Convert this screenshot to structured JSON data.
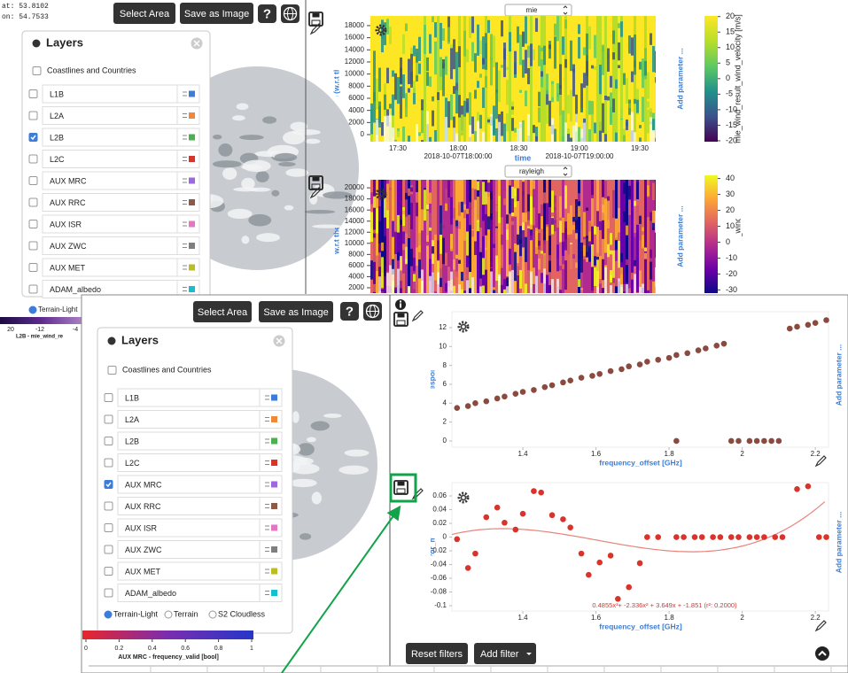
{
  "top_window": {
    "coords": [
      "at: 53.8102",
      "on: 54.7533"
    ],
    "buttons": {
      "select_area": "Select Area",
      "save_image": "Save as Image",
      "help": "?"
    },
    "layers_panel": {
      "title": "Layers",
      "coastlines": "Coastlines and Countries",
      "layers": [
        {
          "name": "L1B",
          "color": "#3b7dd8",
          "checked": false
        },
        {
          "name": "L2A",
          "color": "#f0883a",
          "checked": false
        },
        {
          "name": "L2B",
          "color": "#4caf50",
          "checked": true
        },
        {
          "name": "L2C",
          "color": "#d9342b",
          "checked": false
        },
        {
          "name": "AUX MRC",
          "color": "#9c6ade",
          "checked": false
        },
        {
          "name": "AUX RRC",
          "color": "#8d5a4a",
          "checked": false
        },
        {
          "name": "AUX ISR",
          "color": "#e377c2",
          "checked": false
        },
        {
          "name": "AUX ZWC",
          "color": "#7f7f7f",
          "checked": false
        },
        {
          "name": "AUX MET",
          "color": "#bcbd22",
          "checked": false
        },
        {
          "name": "ADAM_albedo",
          "color": "#17becf",
          "checked": false
        }
      ]
    },
    "base_layer": "Terrain-Light",
    "legend": {
      "ticks": [
        20,
        -12,
        -4
      ],
      "label": "L2B - mie_wind_re"
    },
    "plots": [
      {
        "product": "mie",
        "y_label": "mie_altitude [m (w.r.t the WGS84 ellipsoi",
        "ylim": [
          -1170,
          19600
        ],
        "yticks": [
          0,
          2000,
          4000,
          6000,
          8000,
          10000,
          12000,
          14000,
          16000,
          18000
        ],
        "xticks": [
          "17:30",
          "18:00",
          "18:30",
          "19:00",
          "19:30"
        ],
        "x_dates": [
          "2018-10-07T18:00:00",
          "2018-10-07T19:00:00"
        ],
        "x_label": "time",
        "add_parameter": "Add parameter ...",
        "colorbar": {
          "label": "mie_wind_result_wind_velocity [m/s]",
          "clim": [
            -20.3,
            20.2
          ],
          "ticks": [
            20,
            15,
            10,
            5,
            0,
            -5,
            -10,
            -15,
            -20
          ],
          "colormap": "viridis"
        }
      },
      {
        "product": "rayleigh",
        "y_label": "altitude [m (w.r.t the WGS84 ellips",
        "ylim": [
          1035,
          21450
        ],
        "yticks": [
          2000,
          4000,
          6000,
          8000,
          10000,
          12000,
          14000,
          16000,
          18000,
          20000
        ],
        "add_parameter": "Add parameter ...",
        "colorbar": {
          "label": "eigh_wind_result_wind_velocity [m/s]",
          "clim": [
            -32,
            42
          ],
          "ticks": [
            40,
            30,
            20,
            10,
            0,
            -10,
            -20,
            -30
          ],
          "colormap": "plasma"
        }
      }
    ]
  },
  "bottom_window": {
    "buttons": {
      "select_area": "Select Area",
      "save_image": "Save as Image",
      "help": "?"
    },
    "layers_panel": {
      "title": "Layers",
      "coastlines": "Coastlines and Countries",
      "layers": [
        {
          "name": "L1B",
          "color": "#3b7dd8",
          "checked": false
        },
        {
          "name": "L2A",
          "color": "#f0883a",
          "checked": false
        },
        {
          "name": "L2B",
          "color": "#4caf50",
          "checked": false
        },
        {
          "name": "L2C",
          "color": "#d9342b",
          "checked": false
        },
        {
          "name": "AUX MRC",
          "color": "#9c6ade",
          "checked": true
        },
        {
          "name": "AUX RRC",
          "color": "#8d5a4a",
          "checked": false
        },
        {
          "name": "AUX ISR",
          "color": "#e377c2",
          "checked": false
        },
        {
          "name": "AUX ZWC",
          "color": "#7f7f7f",
          "checked": false
        },
        {
          "name": "AUX MET",
          "color": "#bcbd22",
          "checked": false
        },
        {
          "name": "ADAM_albedo",
          "color": "#17becf",
          "checked": false
        }
      ]
    },
    "base_layers": [
      "Terrain-Light",
      "Terrain",
      "S2 Cloudless"
    ],
    "selected_base": 0,
    "colorbar": {
      "ticks": [
        0,
        0.2,
        0.4,
        0.6,
        0.8,
        1
      ],
      "xlim": [
        0,
        1
      ],
      "label": "AUX MRC - frequency_valid [bool]"
    },
    "filters": {
      "reset": "Reset filters",
      "add": "Add filter"
    }
  },
  "chart_data": [
    {
      "type": "scatter",
      "x_label": "frequency_offset [GHz]",
      "y_label": "measurement_response [ACCD pixel",
      "add_parameter": "Add parameter ...",
      "color": "#8b4a3f",
      "xlim": [
        1.206,
        2.236
      ],
      "ylim": [
        -0.66,
        13.69
      ],
      "xticks": [
        1.4,
        1.6,
        1.8,
        2,
        2.2
      ],
      "yticks": [
        0,
        2,
        4,
        6,
        8,
        10,
        12
      ],
      "x": [
        1.22,
        1.25,
        1.27,
        1.3,
        1.33,
        1.35,
        1.38,
        1.4,
        1.43,
        1.46,
        1.48,
        1.51,
        1.53,
        1.56,
        1.59,
        1.61,
        1.64,
        1.67,
        1.69,
        1.72,
        1.74,
        1.77,
        1.8,
        1.82,
        1.85,
        1.88,
        1.9,
        1.93,
        1.95,
        1.82,
        1.97,
        1.99,
        2.02,
        2.04,
        2.06,
        2.08,
        2.1,
        2.13,
        2.15,
        2.18,
        2.2,
        2.23
      ],
      "values": [
        3.5,
        3.7,
        4.0,
        4.2,
        4.5,
        4.7,
        5.0,
        5.2,
        5.4,
        5.7,
        5.9,
        6.2,
        6.4,
        6.7,
        6.9,
        7.1,
        7.4,
        7.6,
        7.9,
        8.1,
        8.4,
        8.6,
        8.8,
        9.1,
        9.3,
        9.6,
        9.8,
        10.1,
        10.3,
        0,
        0,
        0,
        0,
        0,
        0,
        0,
        0,
        11.9,
        12.1,
        12.3,
        12.5,
        12.8
      ]
    },
    {
      "type": "scatter",
      "x_label": "frequency_offset [GHz]",
      "y_label": "measurement_error_mie_response [AC",
      "add_parameter": "Add parameter ...",
      "color": "#d9342b",
      "xlim": [
        1.206,
        2.236
      ],
      "ylim": [
        -0.1077,
        0.0794
      ],
      "xticks": [
        1.4,
        1.6,
        1.8,
        2,
        2.2
      ],
      "yticks": [
        0.06,
        0.04,
        0.02,
        0,
        -0.02,
        -0.04,
        -0.06,
        -0.08,
        -0.1
      ],
      "x": [
        1.22,
        1.25,
        1.27,
        1.3,
        1.33,
        1.35,
        1.38,
        1.4,
        1.43,
        1.45,
        1.48,
        1.51,
        1.53,
        1.56,
        1.58,
        1.61,
        1.64,
        1.66,
        1.69,
        1.72,
        1.74,
        1.77,
        1.82,
        1.84,
        1.87,
        1.89,
        1.92,
        1.94,
        1.97,
        1.99,
        2.02,
        2.04,
        2.06,
        2.09,
        2.11,
        2.15,
        2.18,
        2.21,
        2.23
      ],
      "values": [
        -0.003,
        -0.045,
        -0.024,
        0.029,
        0.043,
        0.021,
        0.011,
        0.034,
        0.067,
        0.065,
        0.032,
        0.026,
        0.014,
        -0.024,
        -0.055,
        -0.037,
        -0.027,
        -0.09,
        -0.073,
        -0.038,
        0,
        0,
        0,
        0,
        0,
        0,
        0,
        0,
        0,
        0,
        0,
        0,
        0,
        0,
        0,
        0.07,
        0.074,
        0,
        0
      ],
      "fit": {
        "coefficients": [
          0.4855,
          -2.336,
          3.649,
          -1.851
        ],
        "label": "0.4855x³+ -2.336x² + 3.649x + -1.851 (r²: 0.2000)"
      }
    }
  ]
}
